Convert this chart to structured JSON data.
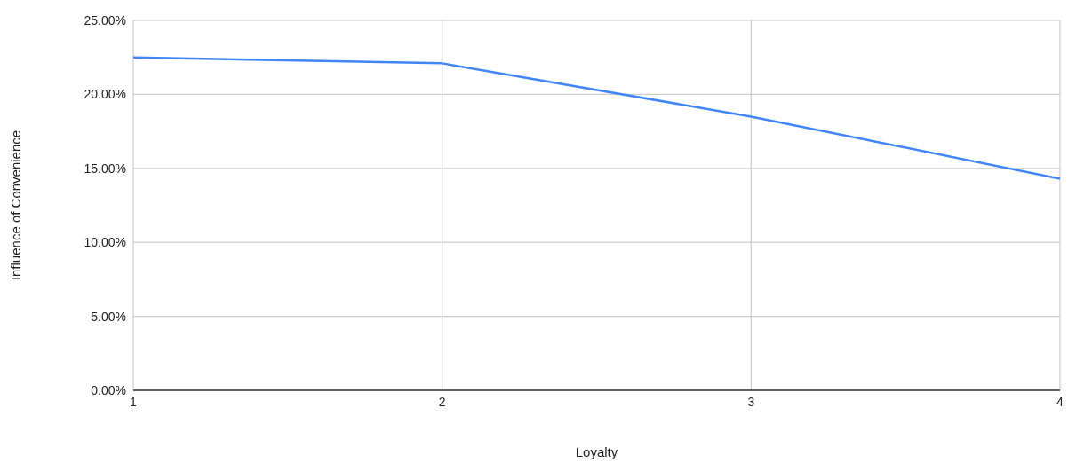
{
  "chart_data": {
    "type": "line",
    "xlabel": "Loyalty",
    "ylabel": "Influence of Convenience",
    "x": [
      1,
      2,
      3,
      4
    ],
    "series": [
      {
        "color": "#4285f4",
        "values": [
          22.5,
          22.1,
          18.5,
          14.3
        ]
      }
    ],
    "xlim": [
      1,
      4
    ],
    "xticks": [
      1,
      2,
      3,
      4
    ],
    "ylim": [
      0,
      25
    ],
    "yticks": [
      {
        "value": 0,
        "label": "0.00%"
      },
      {
        "value": 5,
        "label": "5.00%"
      },
      {
        "value": 10,
        "label": "10.00%"
      },
      {
        "value": 15,
        "label": "15.00%"
      },
      {
        "value": 20,
        "label": "20.00%"
      },
      {
        "value": 25,
        "label": "25.00%"
      }
    ],
    "grid": true,
    "legend": false,
    "marker": "none",
    "line_style": "solid"
  }
}
